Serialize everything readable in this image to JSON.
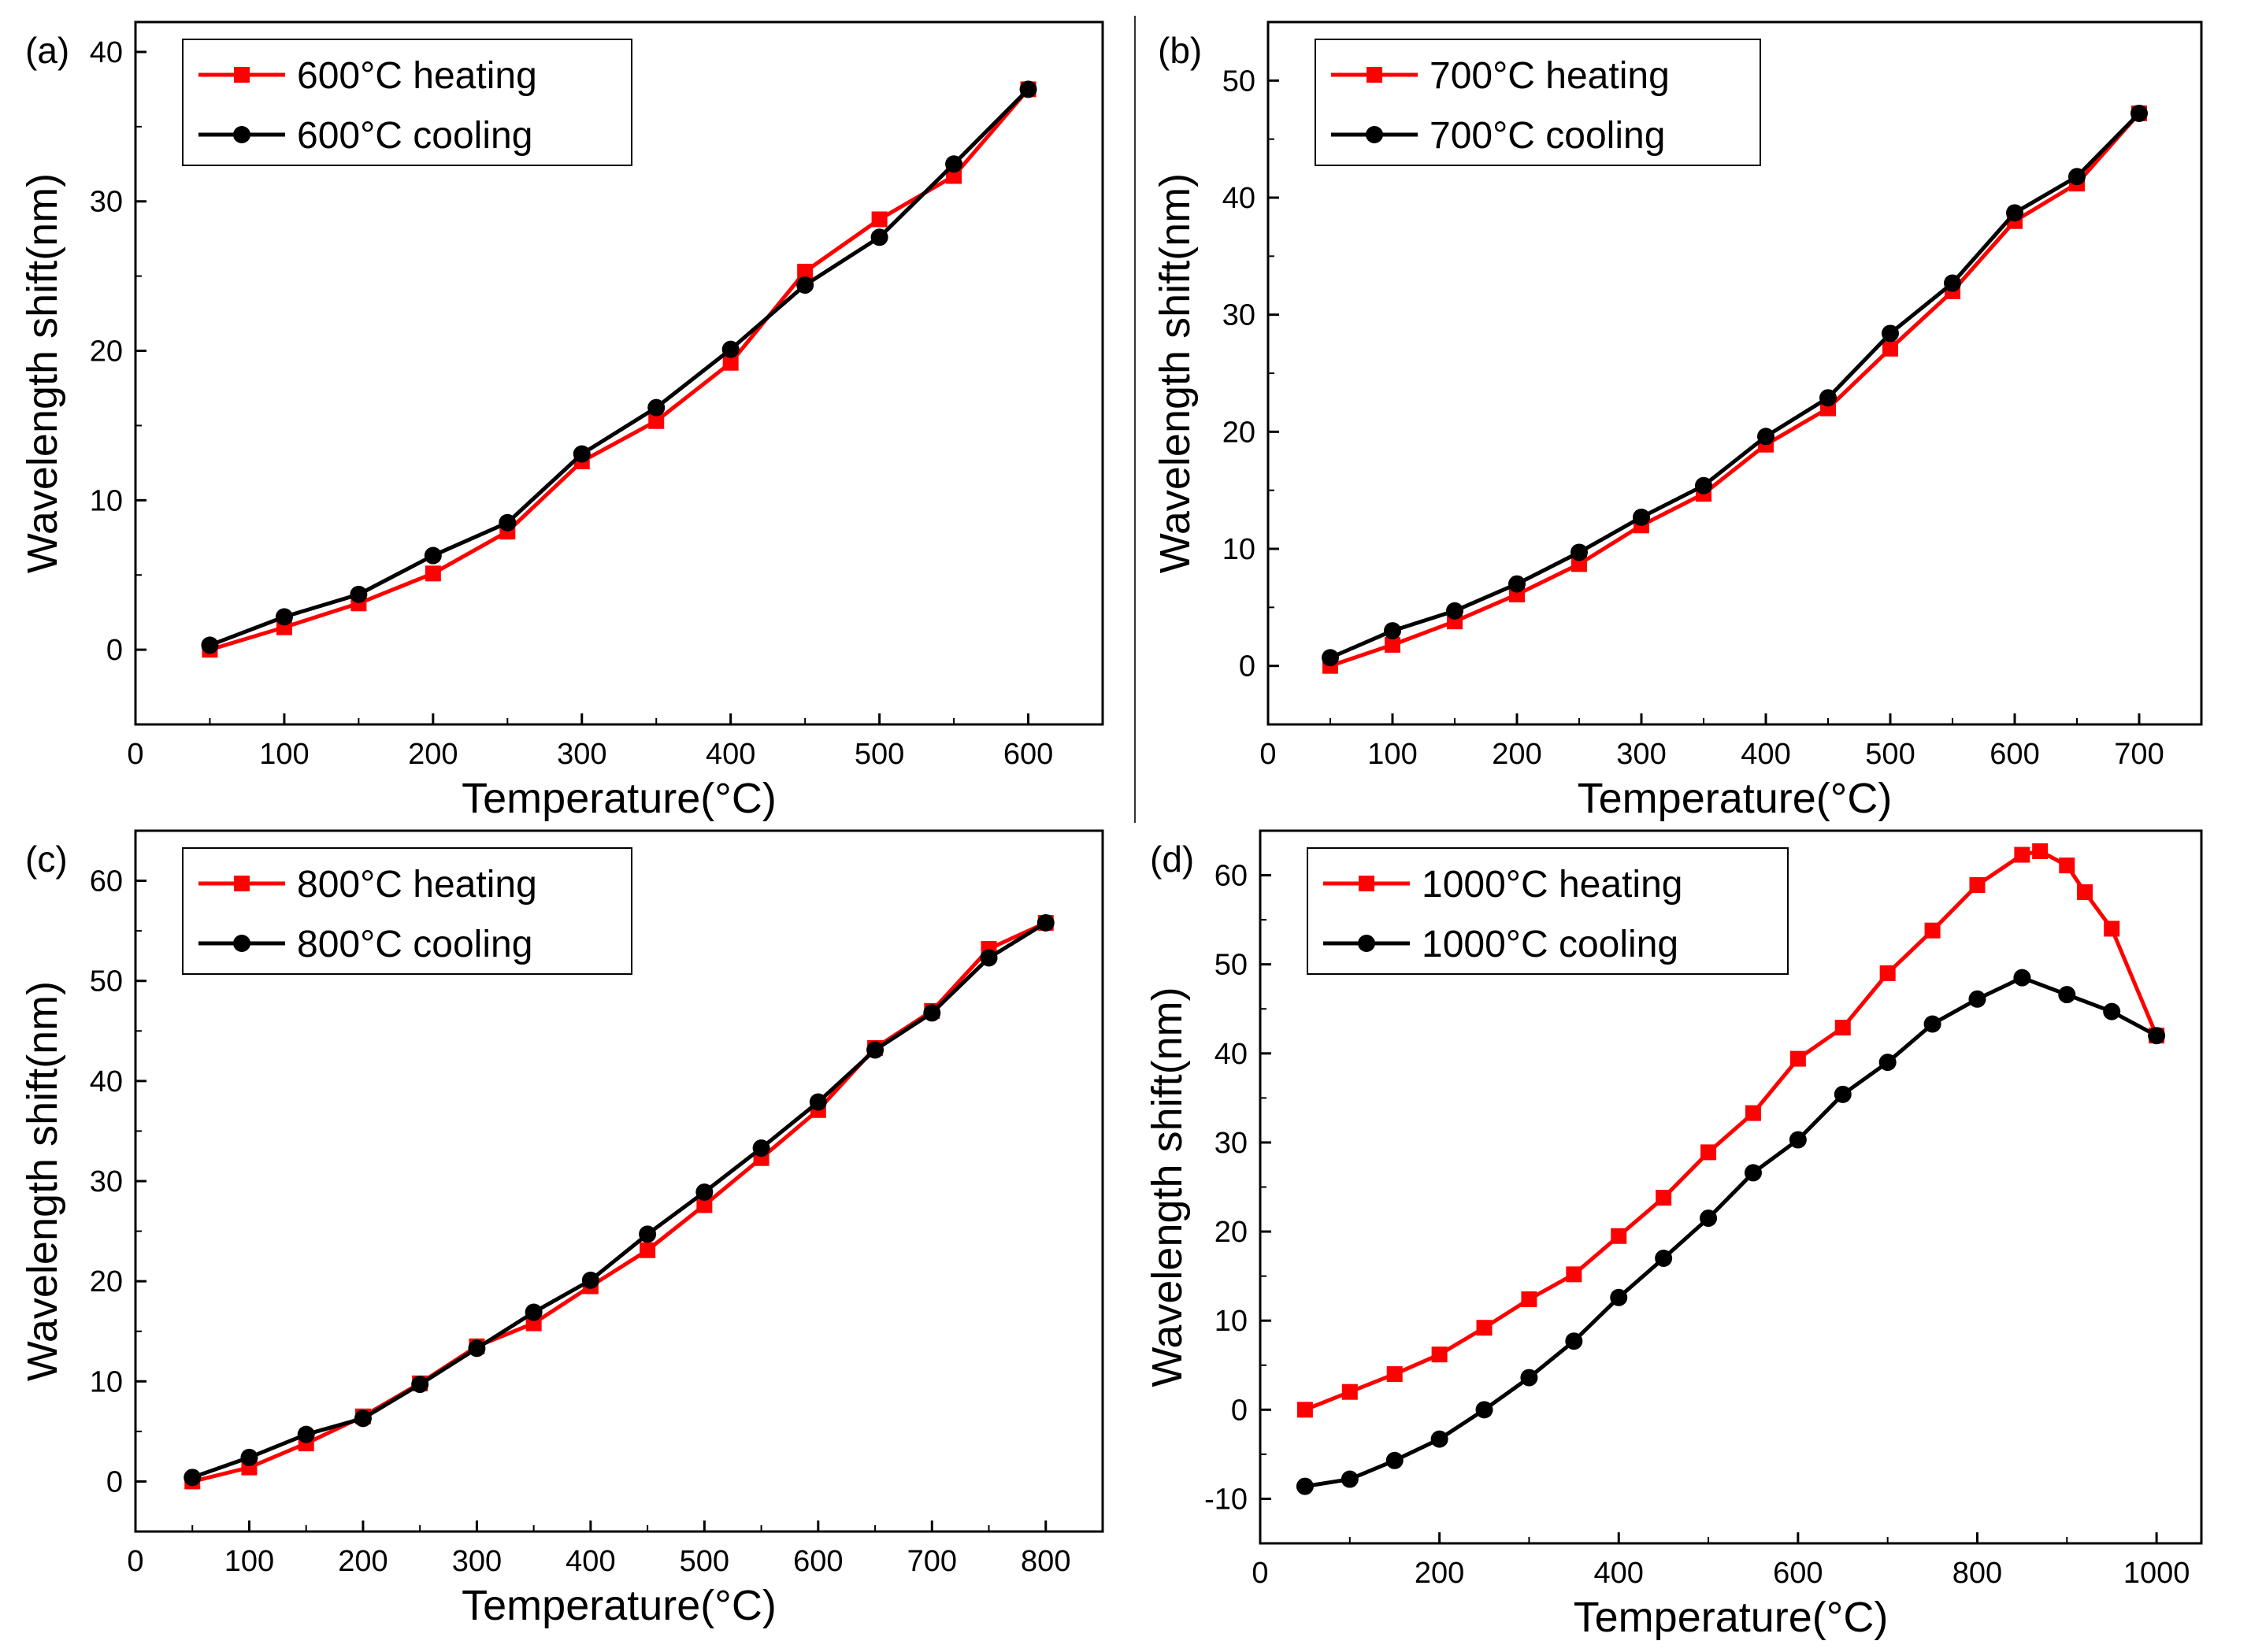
{
  "figure": {
    "colors": {
      "heating": "#ff0000",
      "cooling": "#000000"
    }
  },
  "chart_data": [
    {
      "type": "line",
      "panel_label": "(a)",
      "xlabel": "Temperature(°C)",
      "ylabel": "Wavelength shift(nm)",
      "xlim": [
        0,
        650
      ],
      "ylim": [
        -5,
        42
      ],
      "xticks": [
        0,
        100,
        200,
        300,
        400,
        500,
        600
      ],
      "yticks": [
        0,
        10,
        20,
        30,
        40
      ],
      "legend_position": "top-left",
      "grid": false,
      "series": [
        {
          "name": "600°C heating",
          "marker": "square",
          "color": "#ff0000",
          "x": [
            50,
            100,
            150,
            200,
            250,
            300,
            350,
            400,
            450,
            500,
            550,
            600
          ],
          "y": [
            0,
            1.5,
            3.1,
            5.1,
            7.9,
            12.6,
            15.3,
            19.2,
            25.3,
            28.8,
            31.7,
            37.5
          ]
        },
        {
          "name": "600°C cooling",
          "marker": "circle",
          "color": "#000000",
          "x": [
            50,
            100,
            150,
            200,
            250,
            300,
            350,
            400,
            450,
            500,
            550,
            600
          ],
          "y": [
            0.3,
            2.2,
            3.7,
            6.3,
            8.5,
            13.1,
            16.2,
            20.1,
            24.4,
            27.6,
            32.5,
            37.5
          ]
        }
      ]
    },
    {
      "type": "line",
      "panel_label": "(b)",
      "xlabel": "Temperature(°C)",
      "ylabel": "Wavelength shift(nm)",
      "xlim": [
        0,
        750
      ],
      "ylim": [
        -5,
        55
      ],
      "xticks": [
        0,
        100,
        200,
        300,
        400,
        500,
        600,
        700
      ],
      "yticks": [
        0,
        10,
        20,
        30,
        40,
        50
      ],
      "legend_position": "top-left",
      "grid": false,
      "series": [
        {
          "name": "700°C heating",
          "marker": "square",
          "color": "#ff0000",
          "x": [
            50,
            100,
            150,
            200,
            250,
            300,
            350,
            400,
            450,
            500,
            550,
            600,
            650,
            700
          ],
          "y": [
            0,
            1.8,
            3.8,
            6.1,
            8.7,
            12.0,
            14.7,
            18.9,
            22.0,
            27.1,
            32.0,
            38.0,
            41.2,
            47.2
          ]
        },
        {
          "name": "700°C cooling",
          "marker": "circle",
          "color": "#000000",
          "x": [
            50,
            100,
            150,
            200,
            250,
            300,
            350,
            400,
            450,
            500,
            550,
            600,
            650,
            700
          ],
          "y": [
            0.7,
            3.0,
            4.7,
            7.0,
            9.7,
            12.7,
            15.4,
            19.6,
            22.9,
            28.4,
            32.7,
            38.7,
            41.8,
            47.2
          ]
        }
      ]
    },
    {
      "type": "line",
      "panel_label": "(c)",
      "xlabel": "Temperature(°C)",
      "ylabel": "Wavelength shift(nm)",
      "xlim": [
        0,
        850
      ],
      "ylim": [
        -5,
        65
      ],
      "xticks": [
        0,
        100,
        200,
        300,
        400,
        500,
        600,
        700,
        800
      ],
      "yticks": [
        0,
        10,
        20,
        30,
        40,
        50,
        60
      ],
      "legend_position": "top-left",
      "grid": false,
      "series": [
        {
          "name": "800°C heating",
          "marker": "square",
          "color": "#ff0000",
          "x": [
            50,
            100,
            150,
            200,
            250,
            300,
            350,
            400,
            450,
            500,
            550,
            600,
            650,
            700,
            750,
            800
          ],
          "y": [
            0,
            1.4,
            3.8,
            6.5,
            9.8,
            13.5,
            15.8,
            19.5,
            23.1,
            27.6,
            32.3,
            37.1,
            43.3,
            47.0,
            53.2,
            55.8
          ]
        },
        {
          "name": "800°C cooling",
          "marker": "circle",
          "color": "#000000",
          "x": [
            50,
            100,
            150,
            200,
            250,
            300,
            350,
            400,
            450,
            500,
            550,
            600,
            650,
            700,
            750,
            800
          ],
          "y": [
            0.4,
            2.4,
            4.7,
            6.3,
            9.7,
            13.3,
            16.9,
            20.1,
            24.7,
            28.9,
            33.3,
            37.9,
            43.1,
            46.8,
            52.3,
            55.8
          ]
        }
      ]
    },
    {
      "type": "line",
      "panel_label": "(d)",
      "xlabel": "Temperature(°C)",
      "ylabel": "Wavelength shift(nm)",
      "xlim": [
        0,
        1050
      ],
      "ylim": [
        -15,
        65
      ],
      "xticks": [
        0,
        200,
        400,
        600,
        800,
        1000
      ],
      "yticks": [
        -10,
        0,
        10,
        20,
        30,
        40,
        50,
        60
      ],
      "legend_position": "top-left",
      "grid": false,
      "series": [
        {
          "name": "1000°C heating",
          "marker": "square",
          "color": "#ff0000",
          "x": [
            50,
            100,
            150,
            200,
            250,
            300,
            350,
            400,
            450,
            500,
            550,
            600,
            650,
            700,
            750,
            800,
            850,
            870,
            900,
            920,
            950,
            1000
          ],
          "y": [
            0,
            2.0,
            4.0,
            6.2,
            9.2,
            12.4,
            15.2,
            19.5,
            23.8,
            28.9,
            33.3,
            39.4,
            42.9,
            49.0,
            53.8,
            58.9,
            62.3,
            62.7,
            61.1,
            58.1,
            54.0,
            42.0
          ]
        },
        {
          "name": "1000°C cooling",
          "marker": "circle",
          "color": "#000000",
          "x": [
            50,
            100,
            150,
            200,
            250,
            300,
            350,
            400,
            450,
            500,
            550,
            600,
            650,
            700,
            750,
            800,
            850,
            900,
            950,
            1000
          ],
          "y": [
            -8.6,
            -7.8,
            -5.7,
            -3.3,
            0,
            3.6,
            7.7,
            12.6,
            17.0,
            21.5,
            26.6,
            30.3,
            35.4,
            39.0,
            43.3,
            46.1,
            48.5,
            46.6,
            44.7,
            42.0
          ]
        }
      ]
    }
  ]
}
